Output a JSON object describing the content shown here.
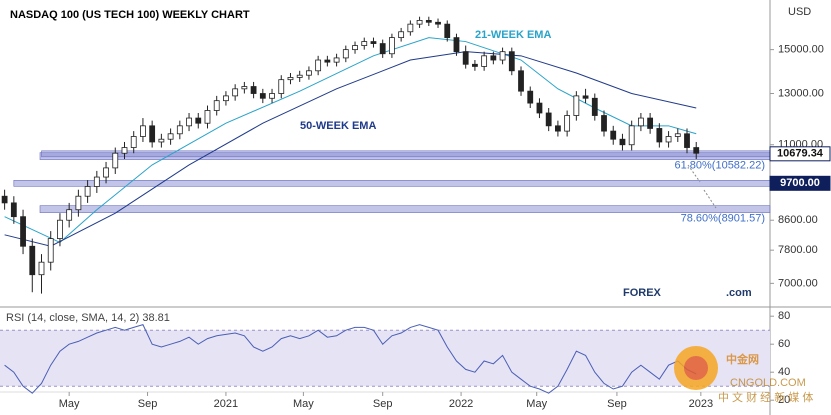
{
  "chart_data": [
    {
      "type": "candlestick",
      "title": "NASDAQ 100 (US TECH 100) WEEKLY CHART",
      "currency": "USD",
      "log_scale": true,
      "xlim": [
        -0.5,
        83
      ],
      "ylim": [
        6630,
        17350
      ],
      "xticks": [
        {
          "value": 7,
          "label": "May"
        },
        {
          "value": 15.5,
          "label": "Sep"
        },
        {
          "value": 24,
          "label": "2021"
        },
        {
          "value": 32.4,
          "label": "May"
        },
        {
          "value": 41,
          "label": "Sep"
        },
        {
          "value": 49.5,
          "label": "2022"
        },
        {
          "value": 57.7,
          "label": "May"
        },
        {
          "value": 66.4,
          "label": "Sep"
        },
        {
          "value": 75.5,
          "label": "2023"
        }
      ],
      "yticks": [
        {
          "value": 7000,
          "label": "7000.00"
        },
        {
          "value": 7800,
          "label": "7800.00"
        },
        {
          "value": 8600,
          "label": "8600.00"
        },
        {
          "value": 11000,
          "label": "11000.00"
        },
        {
          "value": 13000,
          "label": "13000.00"
        },
        {
          "value": 15000,
          "label": "15000.00"
        }
      ],
      "open": [
        9300,
        9100,
        8700,
        7900,
        7200,
        7500,
        8100,
        8600,
        8900,
        9300,
        9600,
        9900,
        10200,
        10700,
        10900,
        11300,
        11700,
        11100,
        11200,
        11400,
        11700,
        12000,
        11800,
        12300,
        12700,
        12900,
        13200,
        13300,
        13000,
        12800,
        13000,
        13600,
        13700,
        13800,
        14000,
        14500,
        14400,
        14600,
        15000,
        15200,
        15400,
        15300,
        14800,
        15600,
        15900,
        16300,
        16500,
        16400,
        16300,
        15600,
        14900,
        14300,
        14200,
        14700,
        14500,
        14900,
        14000,
        13100,
        12600,
        12200,
        11700,
        11500,
        12100,
        12900,
        12800,
        12100,
        11500,
        11200,
        11000,
        11700,
        12000,
        11600,
        11100,
        11300,
        11400,
        10900
      ],
      "high": [
        9500,
        9300,
        8900,
        8100,
        7700,
        8300,
        8800,
        9100,
        9500,
        9800,
        10100,
        10400,
        10900,
        11100,
        11500,
        12000,
        11900,
        11400,
        11600,
        11900,
        12200,
        12200,
        12500,
        12900,
        13100,
        13400,
        13500,
        13500,
        13200,
        13200,
        13800,
        13900,
        14000,
        14200,
        14700,
        14700,
        14800,
        15200,
        15400,
        15600,
        15600,
        15500,
        15800,
        16100,
        16500,
        16700,
        16700,
        16600,
        16500,
        15800,
        15200,
        14500,
        14900,
        14900,
        15100,
        15100,
        14200,
        13300,
        12800,
        12400,
        11900,
        12300,
        13100,
        13200,
        13000,
        12300,
        11700,
        11400,
        11900,
        12200,
        12200,
        11800,
        11500,
        11600,
        11600,
        11100
      ],
      "low": [
        8900,
        8500,
        7700,
        6800,
        6770,
        7300,
        7900,
        8400,
        8700,
        9100,
        9400,
        9700,
        10000,
        10500,
        10700,
        11100,
        10900,
        10900,
        11000,
        11200,
        11500,
        11600,
        11600,
        12100,
        12500,
        12700,
        13000,
        12800,
        12600,
        12600,
        12800,
        13400,
        13500,
        13600,
        13800,
        14200,
        14200,
        14400,
        14800,
        15000,
        15100,
        14600,
        14600,
        15400,
        15700,
        16100,
        16200,
        16100,
        15400,
        14700,
        14100,
        14000,
        14000,
        14300,
        14300,
        13800,
        12900,
        12400,
        12000,
        11500,
        11300,
        11300,
        11900,
        12600,
        11900,
        11300,
        11000,
        10800,
        10800,
        11500,
        11400,
        10900,
        10900,
        11100,
        10700,
        10500
      ],
      "close": [
        9100,
        8700,
        7900,
        7200,
        7500,
        8100,
        8600,
        8900,
        9300,
        9600,
        9900,
        10200,
        10700,
        10900,
        11300,
        11700,
        11100,
        11200,
        11400,
        11700,
        12000,
        11800,
        12300,
        12700,
        12900,
        13200,
        13300,
        13000,
        12800,
        13000,
        13600,
        13700,
        13800,
        14000,
        14500,
        14400,
        14600,
        15000,
        15200,
        15400,
        15300,
        14800,
        15600,
        15900,
        16300,
        16500,
        16400,
        16300,
        15600,
        14900,
        14300,
        14200,
        14700,
        14500,
        14900,
        14000,
        13100,
        12600,
        12200,
        11700,
        11500,
        12100,
        12900,
        12800,
        12100,
        11500,
        11200,
        11000,
        11700,
        12000,
        11600,
        11100,
        11300,
        11400,
        10900,
        10700
      ],
      "series": [
        {
          "name": "21-WEEK EMA",
          "color": "#29a3c9",
          "x": [
            0,
            6,
            10,
            16,
            24,
            32,
            40,
            46,
            50,
            56,
            60,
            64,
            68,
            72,
            75
          ],
          "values": [
            8700,
            8000,
            8900,
            10300,
            11800,
            13100,
            14700,
            15600,
            15400,
            14500,
            13200,
            12400,
            11700,
            11700,
            11400
          ]
        },
        {
          "name": "50-WEEK EMA",
          "color": "#1f3a8a",
          "x": [
            0,
            5,
            12,
            20,
            28,
            36,
            44,
            50,
            56,
            62,
            68,
            75
          ],
          "values": [
            8200,
            7900,
            8800,
            10300,
            11800,
            13200,
            14500,
            14900,
            14700,
            13900,
            13000,
            12400
          ]
        }
      ],
      "levels": [
        {
          "value": 10679.34,
          "label": "10679.34",
          "color": "#ffffff",
          "text_color": "#111111",
          "from": 4
        },
        {
          "value": 9700,
          "label": "9700.00",
          "color": "#0f1f5c",
          "text_color": "#ffffff",
          "from": 1
        }
      ],
      "fib_levels": [
        {
          "value": 10582.22,
          "label": "61.80%(10582.22)"
        },
        {
          "value": 8901.57,
          "label": "78.60%(8901.57)"
        }
      ]
    },
    {
      "type": "line",
      "title": "RSI (14, close, SMA, 14, 2) 38.81",
      "color": "#4a5fb5",
      "ylim": [
        13,
        83
      ],
      "yticks": [
        20,
        40,
        60,
        80
      ],
      "band": [
        30,
        70
      ],
      "band_color": "#e6e3f5",
      "values": [
        45,
        40,
        30,
        25,
        32,
        45,
        55,
        60,
        62,
        65,
        68,
        70,
        72,
        70,
        72,
        74,
        60,
        58,
        60,
        62,
        65,
        60,
        64,
        66,
        67,
        68,
        66,
        58,
        55,
        58,
        64,
        66,
        64,
        66,
        70,
        65,
        66,
        70,
        72,
        72,
        70,
        60,
        66,
        68,
        72,
        74,
        72,
        70,
        58,
        48,
        42,
        40,
        48,
        46,
        52,
        40,
        35,
        30,
        28,
        25,
        30,
        42,
        55,
        52,
        40,
        32,
        28,
        30,
        40,
        45,
        40,
        35,
        45,
        48,
        42,
        38.81
      ]
    }
  ],
  "watermarks": {
    "brand": "FOREX",
    "brand_suffix": ".com",
    "cn_logo": "中金网",
    "cn_site": "CNGOLD.COM",
    "cn_slogan": "中 文 财 经 新 媒 体"
  }
}
